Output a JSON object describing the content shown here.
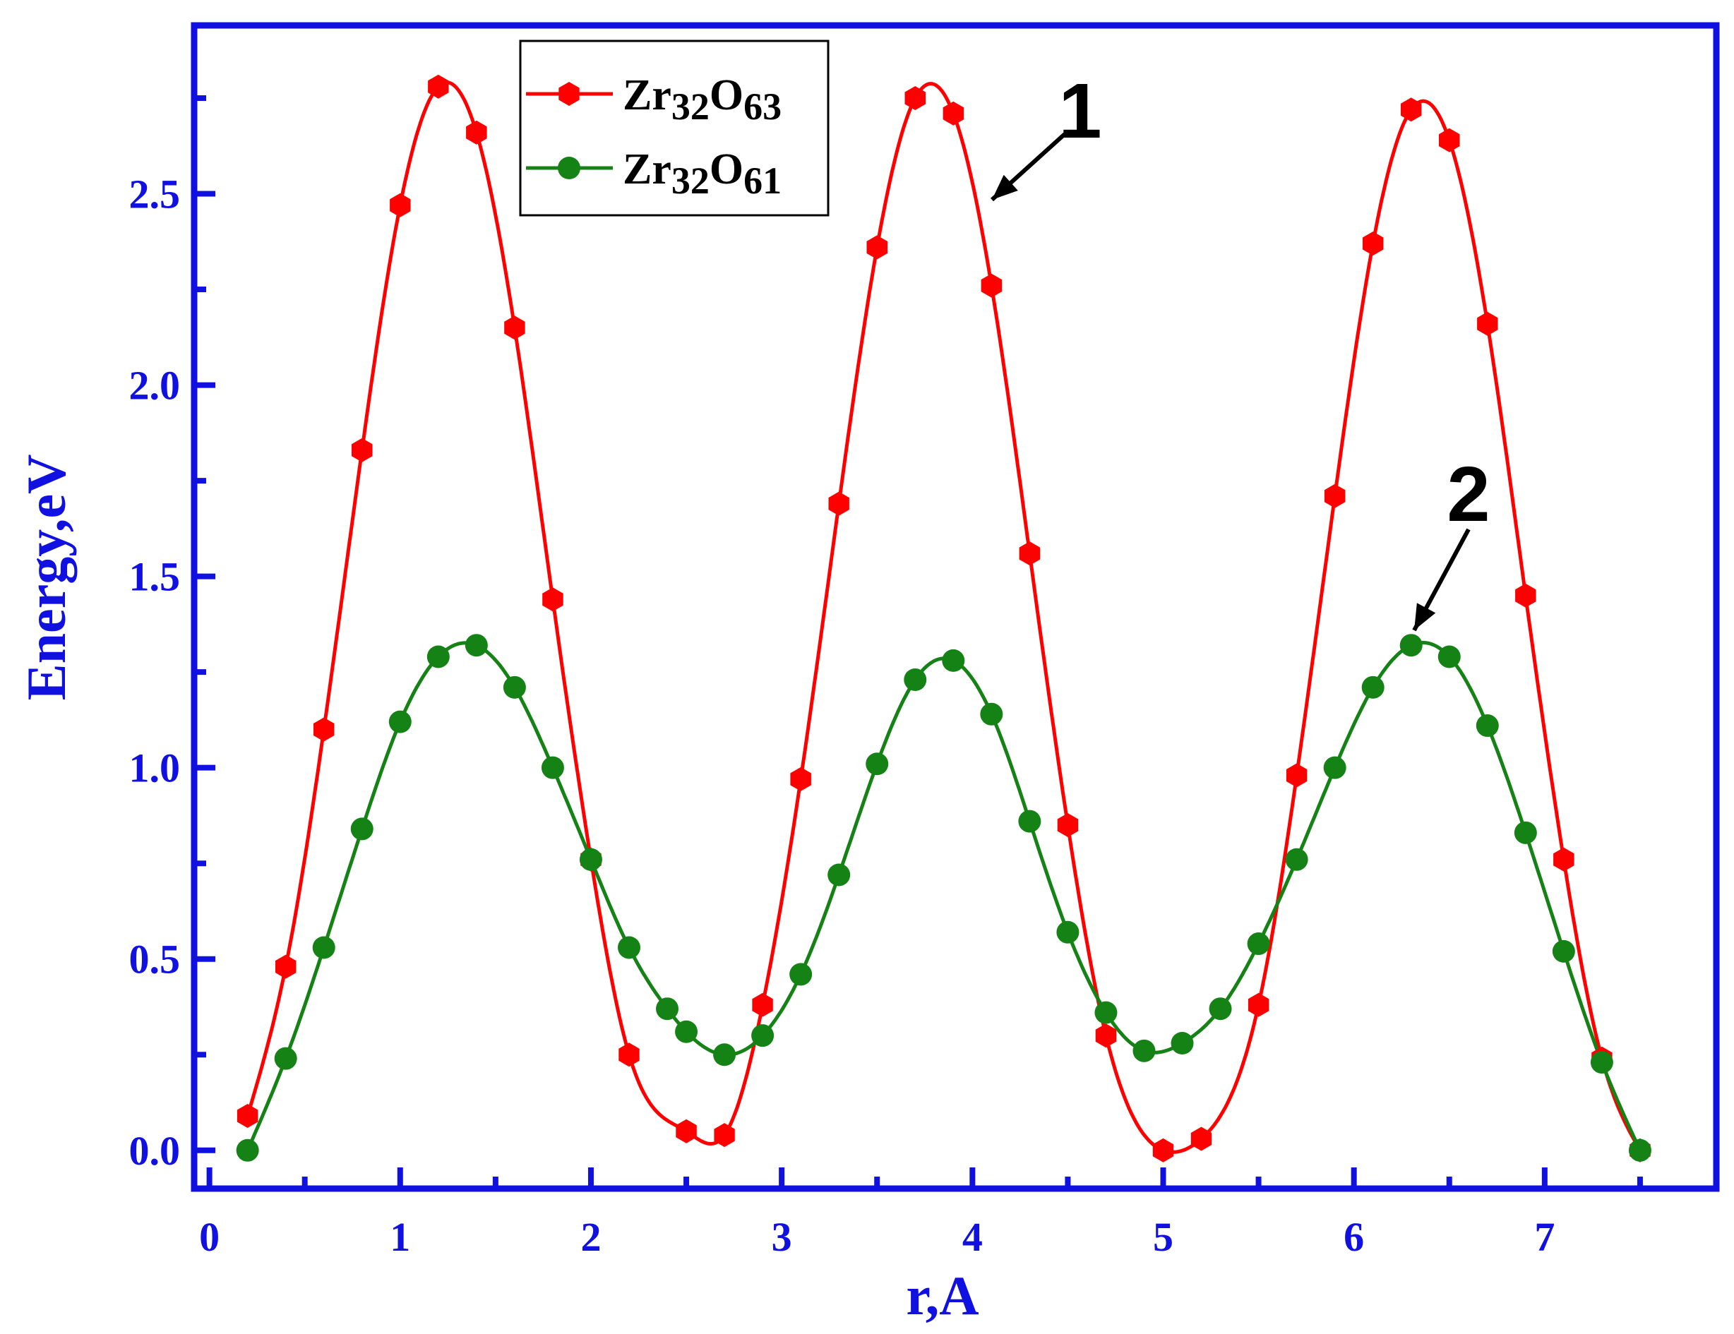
{
  "chart_data": {
    "type": "line",
    "title": "",
    "xlabel": "r,A",
    "ylabel": "Energy,eV",
    "xlim": [
      -0.08,
      7.9
    ],
    "ylim": [
      -0.1,
      2.94
    ],
    "x_ticks": [
      0,
      1,
      2,
      3,
      4,
      5,
      6,
      7
    ],
    "x_tick_labels": [
      "0",
      "1",
      "2",
      "3",
      "4",
      "5",
      "6",
      "7"
    ],
    "y_ticks": [
      0.0,
      0.5,
      1.0,
      1.5,
      2.0,
      2.5
    ],
    "y_tick_labels": [
      "0.0",
      "0.5",
      "1.0",
      "1.5",
      "2.0",
      "2.5"
    ],
    "grid": false,
    "legend_position": "top-left",
    "axis_color": "#1010e0",
    "series": [
      {
        "name": "Zr32O63",
        "name_base": "Zr",
        "name_sub1": "32",
        "name_mid": "O",
        "name_sub2": "63",
        "color": "#ff0000",
        "marker": "hexagon",
        "x": [
          0.2,
          0.4,
          0.6,
          0.8,
          1.0,
          1.2,
          1.4,
          1.6,
          1.8,
          2.0,
          2.2,
          2.5,
          2.7,
          2.9,
          3.1,
          3.3,
          3.5,
          3.7,
          3.9,
          4.1,
          4.3,
          4.5,
          4.7,
          5.0,
          5.2,
          5.5,
          5.7,
          5.9,
          6.1,
          6.3,
          6.5,
          6.7,
          6.9,
          7.1,
          7.3,
          7.5
        ],
        "y": [
          0.09,
          0.48,
          1.1,
          1.83,
          2.47,
          2.78,
          2.66,
          2.15,
          1.44,
          0.76,
          0.25,
          0.05,
          0.04,
          0.38,
          0.97,
          1.69,
          2.36,
          2.75,
          2.71,
          2.26,
          1.56,
          0.85,
          0.3,
          0.0,
          0.03,
          0.38,
          0.98,
          1.71,
          2.37,
          2.72,
          2.64,
          2.16,
          1.45,
          0.76,
          0.24,
          0.0
        ]
      },
      {
        "name": "Zr32O61",
        "name_base": "Zr",
        "name_sub1": "32",
        "name_mid": "O",
        "name_sub2": "61",
        "color": "#148214",
        "marker": "circle",
        "x": [
          0.2,
          0.4,
          0.6,
          0.8,
          1.0,
          1.2,
          1.4,
          1.6,
          1.8,
          2.0,
          2.2,
          2.4,
          2.5,
          2.7,
          2.9,
          3.1,
          3.3,
          3.5,
          3.7,
          3.9,
          4.1,
          4.3,
          4.5,
          4.7,
          4.9,
          5.1,
          5.3,
          5.5,
          5.7,
          5.9,
          6.1,
          6.3,
          6.5,
          6.7,
          6.9,
          7.1,
          7.3,
          7.5
        ],
        "y": [
          0.0,
          0.24,
          0.53,
          0.84,
          1.12,
          1.29,
          1.32,
          1.21,
          1.0,
          0.76,
          0.53,
          0.37,
          0.31,
          0.25,
          0.3,
          0.46,
          0.72,
          1.01,
          1.23,
          1.28,
          1.14,
          0.86,
          0.57,
          0.36,
          0.26,
          0.28,
          0.37,
          0.54,
          0.76,
          1.0,
          1.21,
          1.32,
          1.29,
          1.11,
          0.83,
          0.52,
          0.23,
          0.0
        ]
      }
    ],
    "annotations": [
      {
        "text": "1",
        "target_series": 0
      },
      {
        "text": "2",
        "target_series": 1
      }
    ]
  }
}
